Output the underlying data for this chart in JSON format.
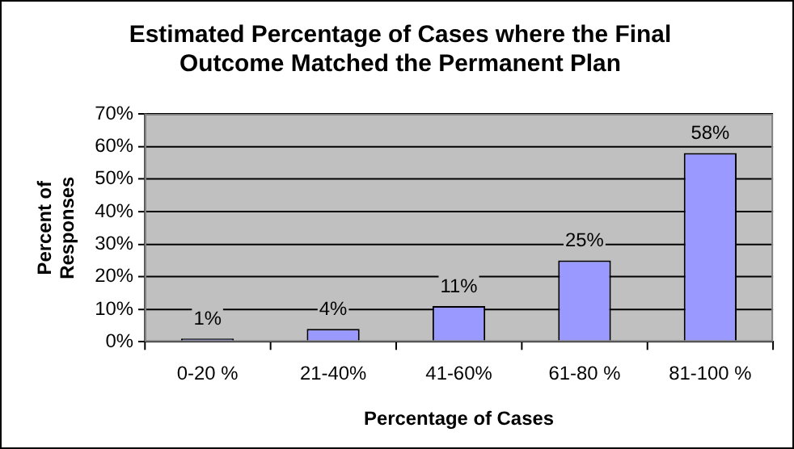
{
  "chart_data": {
    "type": "bar",
    "title": "Estimated Percentage of Cases where the Final Outcome Matched the Permanent Plan",
    "xlabel": "Percentage of Cases",
    "ylabel": "Percent of Responses",
    "categories": [
      "0-20 %",
      "21-40%",
      "41-60%",
      "61-80 %",
      "81-100 %"
    ],
    "values": [
      1,
      4,
      11,
      25,
      58
    ],
    "color": "#9999ff",
    "ylim": [
      0,
      70
    ],
    "yticks": [
      {
        "value": 0,
        "label": "0%"
      },
      {
        "value": 10,
        "label": "10%"
      },
      {
        "value": 20,
        "label": "20%"
      },
      {
        "value": 30,
        "label": "30%"
      },
      {
        "value": 40,
        "label": "40%"
      },
      {
        "value": 50,
        "label": "50%"
      },
      {
        "value": 60,
        "label": "60%"
      },
      {
        "value": 70,
        "label": "70%"
      }
    ],
    "value_labels": [
      "1%",
      "4%",
      "11%",
      "25%",
      "58%"
    ],
    "grid": "y",
    "legend": false
  }
}
